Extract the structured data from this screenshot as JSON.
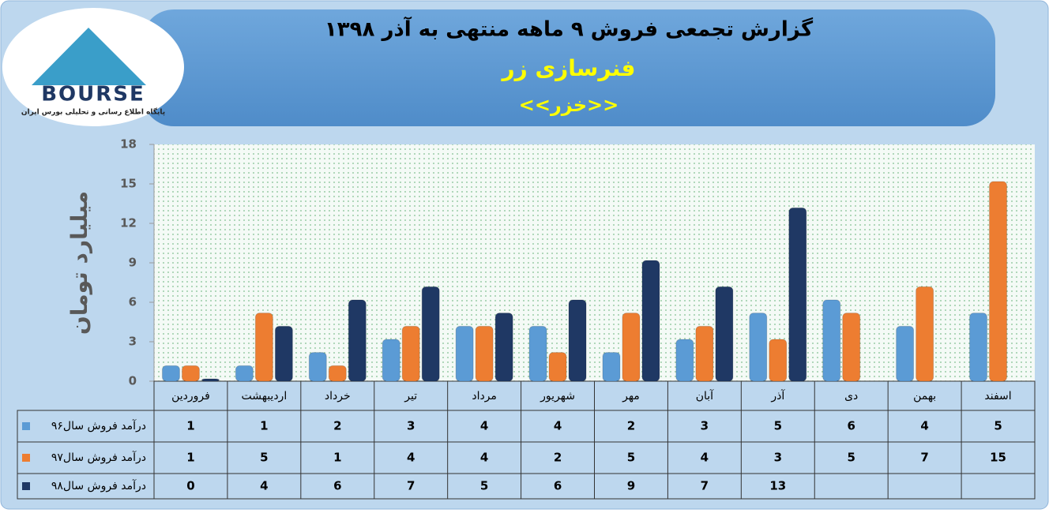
{
  "logo": {
    "brand": "BOURSE",
    "tagline": "پایگاه اطلاع رسانی و تحلیلی بورس ایران"
  },
  "chart_data": {
    "type": "bar",
    "title": "گزارش تجمعی فروش ۹ ماهه منتهی به آذر ۱۳۹۸",
    "subtitle": "فنرسازی زر",
    "symbol": "<<خزر>>",
    "y_label": "میلیارد تومان",
    "categories": [
      "فروردین",
      "اردیبهشت",
      "خرداد",
      "تیر",
      "مرداد",
      "شهریور",
      "مهر",
      "آبان",
      "آذر",
      "دی",
      "بهمن",
      "اسفند"
    ],
    "series": [
      {
        "name": "درآمد فروش سال۹۶",
        "color": "#5b9bd5",
        "values": [
          1,
          1,
          2,
          3,
          4,
          4,
          2,
          3,
          5,
          6,
          4,
          5
        ]
      },
      {
        "name": "درآمد فروش سال۹۷",
        "color": "#ed7d31",
        "values": [
          1,
          5,
          1,
          4,
          4,
          2,
          5,
          4,
          3,
          5,
          7,
          15
        ]
      },
      {
        "name": "درآمد فروش سال۹۸",
        "color": "#1f3864",
        "values": [
          0,
          4,
          6,
          7,
          5,
          6,
          9,
          7,
          13,
          null,
          null,
          null
        ]
      }
    ],
    "ylim": [
      0,
      18
    ],
    "yticks": [
      0,
      3,
      6,
      9,
      12,
      15,
      18
    ],
    "grid": false
  }
}
